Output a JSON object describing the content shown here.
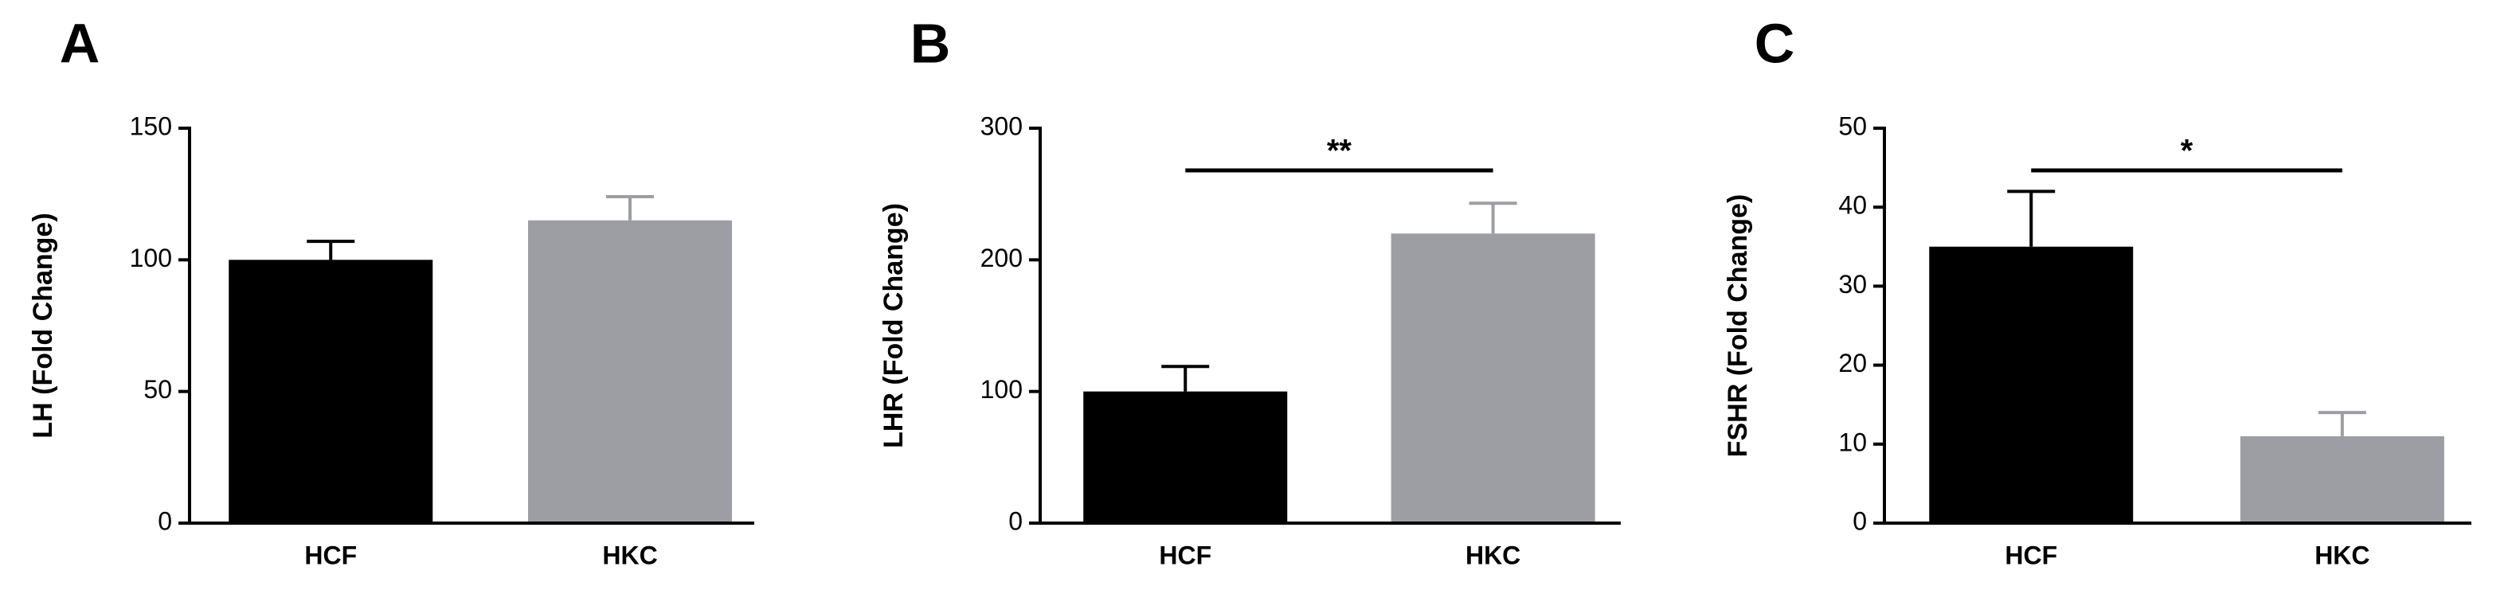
{
  "chart_data": [
    {
      "type": "bar",
      "panel_label": "A",
      "y_label": "LH (Fold Change)",
      "categories": [
        "HCF",
        "HKC"
      ],
      "values": [
        100,
        115
      ],
      "errors": [
        7,
        9
      ],
      "colors": [
        "#000000",
        "#9d9ea3"
      ],
      "ylim": [
        0,
        150
      ],
      "yticks": [
        0,
        50,
        100,
        150
      ]
    },
    {
      "type": "bar",
      "panel_label": "B",
      "y_label": "LHR (Fold Change)",
      "categories": [
        "HCF",
        "HKC"
      ],
      "values": [
        100,
        220
      ],
      "errors": [
        19,
        23
      ],
      "colors": [
        "#000000",
        "#9d9ea3"
      ],
      "ylim": [
        0,
        300
      ],
      "yticks": [
        0,
        100,
        200,
        300
      ],
      "annotation": "**"
    },
    {
      "type": "bar",
      "panel_label": "C",
      "y_label": "FSHR (Fold Change)",
      "categories": [
        "HCF",
        "HKC"
      ],
      "values": [
        35,
        11
      ],
      "errors": [
        7,
        3
      ],
      "colors": [
        "#000000",
        "#9d9ea3"
      ],
      "ylim": [
        0,
        50
      ],
      "yticks": [
        0,
        10,
        20,
        30,
        40,
        50
      ],
      "annotation": "*"
    }
  ]
}
